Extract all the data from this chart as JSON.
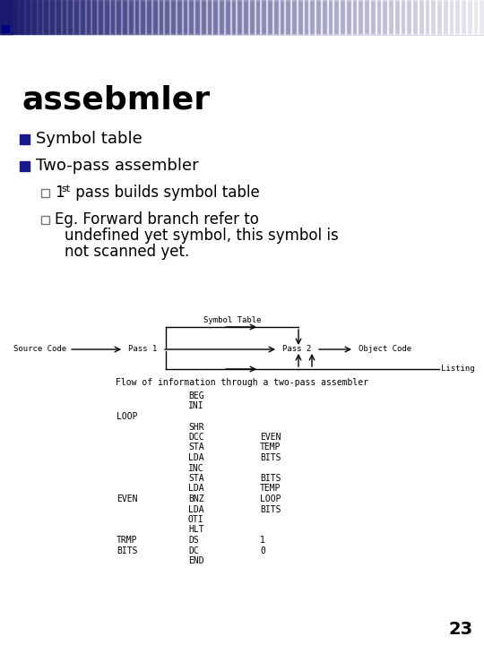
{
  "title": "assebmler",
  "bullet1": "Symbol table",
  "bullet2": "Two-pass assembler",
  "diagram_caption": "Flow of information through a two-pass assembler",
  "code_lines": [
    [
      "",
      "BEG",
      ""
    ],
    [
      "",
      "INI",
      ""
    ],
    [
      "LOOP",
      "",
      ""
    ],
    [
      "",
      "SHR",
      ""
    ],
    [
      "",
      "DCC",
      "EVEN"
    ],
    [
      "",
      "STA",
      "TEMP"
    ],
    [
      "",
      "LDA",
      "BITS"
    ],
    [
      "",
      "INC",
      ""
    ],
    [
      "",
      "STA",
      "BITS"
    ],
    [
      "",
      "LDA",
      "TEMP"
    ],
    [
      "EVEN",
      "BNZ",
      "LOOP"
    ],
    [
      "",
      "LDA",
      "BITS"
    ],
    [
      "",
      "OTI",
      ""
    ],
    [
      "",
      "HLT",
      ""
    ],
    [
      "TRMP",
      "DS",
      "1"
    ],
    [
      "BITS",
      "DC",
      "0"
    ],
    [
      "",
      "END",
      ""
    ]
  ],
  "page_number": "23",
  "bg_color": "#ffffff",
  "header_dark": "#1a1a6e",
  "bullet_color": "#1a1a8e",
  "text_color": "#000000",
  "title_fontsize": 26,
  "bullet_fontsize": 13,
  "sub_fontsize": 12,
  "code_fontsize": 7,
  "diagram_fontsize": 6.5,
  "caption_fontsize": 7
}
